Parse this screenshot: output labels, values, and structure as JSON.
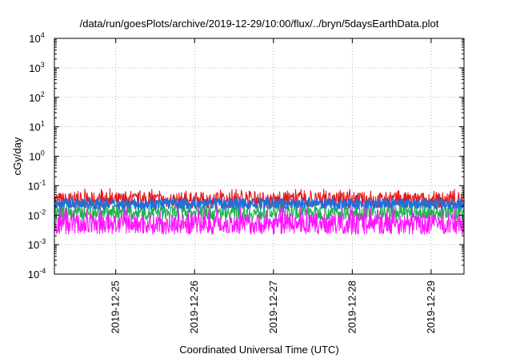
{
  "chart_data": {
    "type": "line",
    "title": "/data/run/goesPlots/archive/2019-12-29/10:00/flux/../bryn/5daysEarthData.plot",
    "xlabel": "Coordinated Universal Time (UTC)",
    "ylabel": "cGy/day",
    "yscale": "log",
    "ylim": [
      0.0001,
      10000
    ],
    "xlim": [
      "2019-12-24 05:20",
      "2019-12-29 10:00"
    ],
    "grid": true,
    "legend": "none",
    "y_ticks": [
      {
        "base": "10",
        "exp": "-4"
      },
      {
        "base": "10",
        "exp": "-3"
      },
      {
        "base": "10",
        "exp": "-2"
      },
      {
        "base": "10",
        "exp": "-1"
      },
      {
        "base": "10",
        "exp": "0"
      },
      {
        "base": "10",
        "exp": "1"
      },
      {
        "base": "10",
        "exp": "2"
      },
      {
        "base": "10",
        "exp": "3"
      },
      {
        "base": "10",
        "exp": "4"
      }
    ],
    "x_ticks": [
      "2019-12-25",
      "2019-12-26",
      "2019-12-27",
      "2019-12-28",
      "2019-12-29"
    ],
    "colors": {
      "red": "#e31a1c",
      "green": "#20b050",
      "blue": "#1f6fe0",
      "magenta": "#ff14ff",
      "grid": "#b0b0b0",
      "axis": "#000000"
    },
    "series": [
      {
        "color": "#e31a1c",
        "level": 0.032,
        "spikes": 0.08,
        "jitter": 0.55
      },
      {
        "color": "#20b050",
        "level": 0.012,
        "spikes": 0.03,
        "jitter": 0.5
      },
      {
        "color": "#1f6fe0",
        "level": 0.024,
        "spikes": 0.04,
        "jitter": 0.35
      },
      {
        "color": "#ff14ff",
        "level": 0.005,
        "spikes": 0.02,
        "jitter": 0.7
      }
    ]
  }
}
